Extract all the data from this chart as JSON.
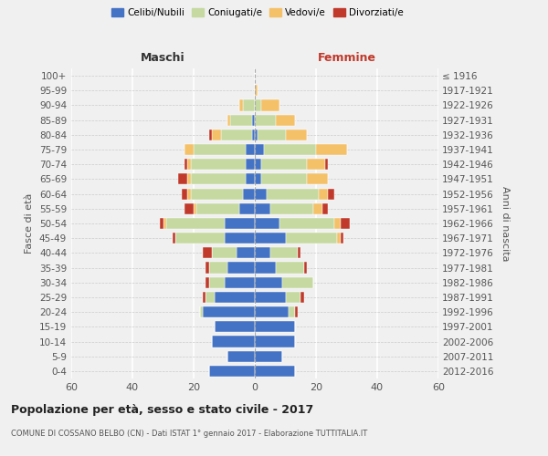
{
  "age_groups": [
    "0-4",
    "5-9",
    "10-14",
    "15-19",
    "20-24",
    "25-29",
    "30-34",
    "35-39",
    "40-44",
    "45-49",
    "50-54",
    "55-59",
    "60-64",
    "65-69",
    "70-74",
    "75-79",
    "80-84",
    "85-89",
    "90-94",
    "95-99",
    "100+"
  ],
  "birth_years": [
    "2012-2016",
    "2007-2011",
    "2002-2006",
    "1997-2001",
    "1992-1996",
    "1987-1991",
    "1982-1986",
    "1977-1981",
    "1972-1976",
    "1967-1971",
    "1962-1966",
    "1957-1961",
    "1952-1956",
    "1947-1951",
    "1942-1946",
    "1937-1941",
    "1932-1936",
    "1927-1931",
    "1922-1926",
    "1917-1921",
    "≤ 1916"
  ],
  "male": {
    "celibi": [
      15,
      9,
      14,
      13,
      17,
      13,
      10,
      9,
      6,
      10,
      10,
      5,
      4,
      3,
      3,
      3,
      1,
      1,
      0,
      0,
      0
    ],
    "coniugati": [
      0,
      0,
      0,
      0,
      1,
      3,
      5,
      6,
      8,
      16,
      19,
      14,
      17,
      18,
      18,
      17,
      10,
      7,
      4,
      0,
      0
    ],
    "vedovi": [
      0,
      0,
      0,
      0,
      0,
      0,
      0,
      0,
      0,
      0,
      1,
      1,
      1,
      1,
      1,
      3,
      3,
      1,
      1,
      0,
      0
    ],
    "divorziati": [
      0,
      0,
      0,
      0,
      0,
      1,
      1,
      1,
      3,
      1,
      1,
      3,
      2,
      3,
      1,
      0,
      1,
      0,
      0,
      0,
      0
    ]
  },
  "female": {
    "nubili": [
      13,
      9,
      13,
      13,
      11,
      10,
      9,
      7,
      5,
      10,
      8,
      5,
      4,
      2,
      2,
      3,
      1,
      0,
      0,
      0,
      0
    ],
    "coniugate": [
      0,
      0,
      0,
      0,
      2,
      5,
      10,
      9,
      9,
      17,
      18,
      14,
      17,
      15,
      15,
      17,
      9,
      7,
      2,
      0,
      0
    ],
    "vedove": [
      0,
      0,
      0,
      0,
      0,
      0,
      0,
      0,
      0,
      1,
      2,
      3,
      3,
      7,
      6,
      10,
      7,
      6,
      6,
      1,
      0
    ],
    "divorziate": [
      0,
      0,
      0,
      0,
      1,
      1,
      0,
      1,
      1,
      1,
      3,
      2,
      2,
      0,
      1,
      0,
      0,
      0,
      0,
      0,
      0
    ]
  },
  "colors": {
    "celibi": "#4472c4",
    "coniugati": "#c5d9a0",
    "vedovi": "#f4c169",
    "divorziati": "#c0392b"
  },
  "title": "Popolazione per età, sesso e stato civile - 2017",
  "subtitle": "COMUNE DI COSSANO BELBO (CN) - Dati ISTAT 1° gennaio 2017 - Elaborazione TUTTITALIA.IT",
  "xlabel_left": "Maschi",
  "xlabel_right": "Femmine",
  "ylabel_left": "Fasce di età",
  "ylabel_right": "Anni di nascita",
  "xlim": 60,
  "background_color": "#f0f0f0"
}
